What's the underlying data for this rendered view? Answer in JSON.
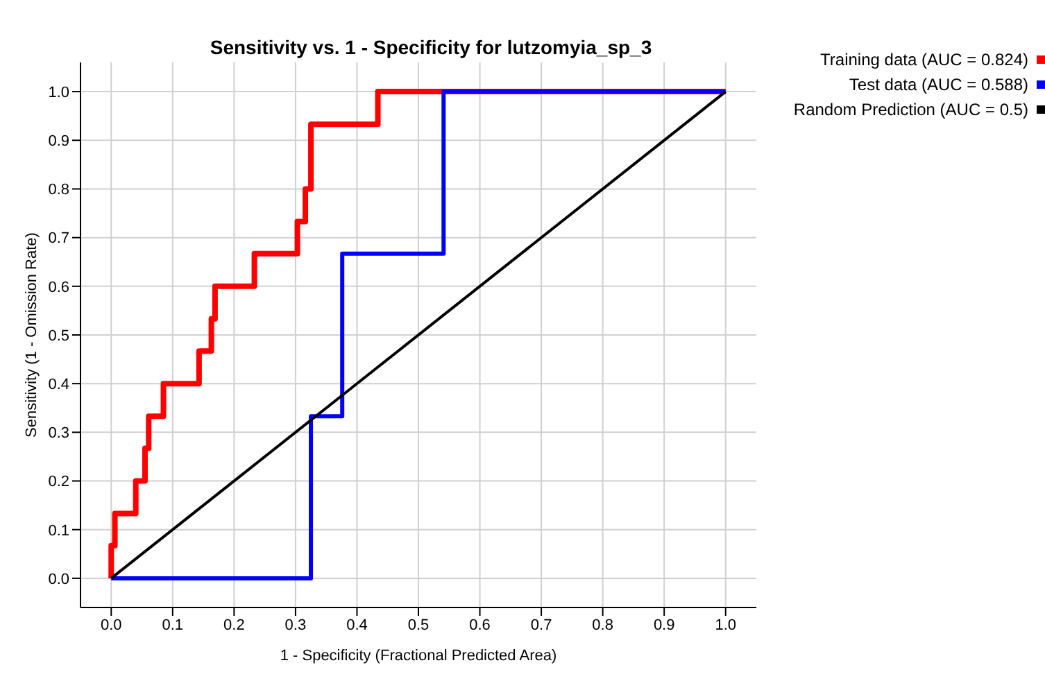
{
  "chart_data": {
    "type": "line",
    "title": "Sensitivity vs. 1 - Specificity for lutzomyia_sp_3",
    "xlabel": "1 - Specificity  (Fractional Predicted Area)",
    "ylabel": "Sensitivity  (1 - Omission Rate)",
    "xlim": [
      -0.05,
      1.05
    ],
    "ylim": [
      -0.06,
      1.06
    ],
    "xticks": [
      {
        "value": 0,
        "label": "0.0"
      },
      {
        "value": 0.1,
        "label": "0.1"
      },
      {
        "value": 0.2,
        "label": "0.2"
      },
      {
        "value": 0.3,
        "label": "0.3"
      },
      {
        "value": 0.4,
        "label": "0.4"
      },
      {
        "value": 0.5,
        "label": "0.5"
      },
      {
        "value": 0.6,
        "label": "0.6"
      },
      {
        "value": 0.7,
        "label": "0.7"
      },
      {
        "value": 0.8,
        "label": "0.8"
      },
      {
        "value": 0.9,
        "label": "0.9"
      },
      {
        "value": 1,
        "label": "1.0"
      }
    ],
    "yticks": [
      {
        "value": 0,
        "label": "0.0"
      },
      {
        "value": 0.1,
        "label": "0.1"
      },
      {
        "value": 0.2,
        "label": "0.2"
      },
      {
        "value": 0.3,
        "label": "0.3"
      },
      {
        "value": 0.4,
        "label": "0.4"
      },
      {
        "value": 0.5,
        "label": "0.5"
      },
      {
        "value": 0.6,
        "label": "0.6"
      },
      {
        "value": 0.7,
        "label": "0.7"
      },
      {
        "value": 0.8,
        "label": "0.8"
      },
      {
        "value": 0.9,
        "label": "0.9"
      },
      {
        "value": 1,
        "label": "1.0"
      }
    ],
    "grid": true,
    "legend": "top right",
    "marker": "none",
    "line_style": "solid",
    "series": [
      {
        "name": "Training data (AUC = 0.824)",
        "color": "#ff0000",
        "x": [
          0,
          0,
          0.006,
          0.006,
          0.04,
          0.04,
          0.055,
          0.055,
          0.061,
          0.061,
          0.085,
          0.085,
          0.143,
          0.143,
          0.163,
          0.163,
          0.169,
          0.169,
          0.233,
          0.233,
          0.303,
          0.303,
          0.316,
          0.316,
          0.325,
          0.325,
          0.434,
          0.434,
          1
        ],
        "values": [
          0,
          0.067,
          0.067,
          0.133,
          0.133,
          0.2,
          0.2,
          0.267,
          0.267,
          0.333,
          0.333,
          0.4,
          0.4,
          0.467,
          0.467,
          0.533,
          0.533,
          0.6,
          0.6,
          0.667,
          0.667,
          0.733,
          0.733,
          0.8,
          0.8,
          0.933,
          0.933,
          1,
          1
        ]
      },
      {
        "name": "Test data (AUC = 0.588)",
        "color": "#0000ff",
        "x": [
          0,
          0.325,
          0.325,
          0.376,
          0.376,
          0.541,
          0.541,
          1
        ],
        "values": [
          0,
          0,
          0.333,
          0.333,
          0.667,
          0.667,
          1,
          1
        ]
      },
      {
        "name": "Random Prediction (AUC = 0.5)",
        "color": "#000000",
        "x": [
          0,
          1
        ],
        "values": [
          0,
          1
        ]
      }
    ]
  }
}
